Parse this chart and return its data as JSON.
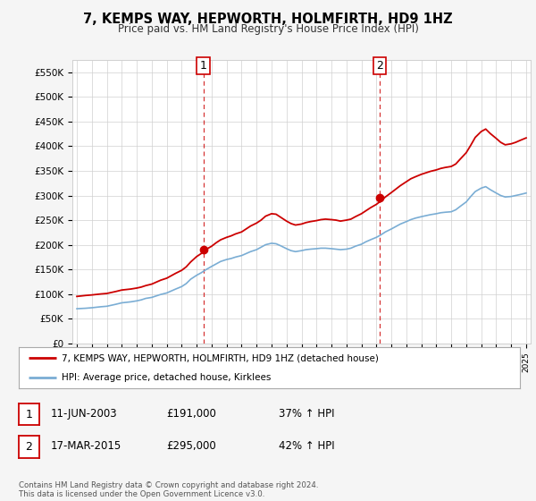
{
  "title": "7, KEMPS WAY, HEPWORTH, HOLMFIRTH, HD9 1HZ",
  "subtitle": "Price paid vs. HM Land Registry's House Price Index (HPI)",
  "ylim": [
    0,
    575000
  ],
  "yticks": [
    0,
    50000,
    100000,
    150000,
    200000,
    250000,
    300000,
    350000,
    400000,
    450000,
    500000,
    550000
  ],
  "ytick_labels": [
    "£0",
    "£50K",
    "£100K",
    "£150K",
    "£200K",
    "£250K",
    "£300K",
    "£350K",
    "£400K",
    "£450K",
    "£500K",
    "£550K"
  ],
  "sale1_date": 2003.44,
  "sale1_price": 191000,
  "sale1_label": "1",
  "sale2_date": 2015.21,
  "sale2_price": 295000,
  "sale2_label": "2",
  "legend_line1": "7, KEMPS WAY, HEPWORTH, HOLMFIRTH, HD9 1HZ (detached house)",
  "legend_line2": "HPI: Average price, detached house, Kirklees",
  "table_row1": [
    "1",
    "11-JUN-2003",
    "£191,000",
    "37% ↑ HPI"
  ],
  "table_row2": [
    "2",
    "17-MAR-2015",
    "£295,000",
    "42% ↑ HPI"
  ],
  "footer": "Contains HM Land Registry data © Crown copyright and database right 2024.\nThis data is licensed under the Open Government Licence v3.0.",
  "hpi_color": "#7aadd4",
  "price_color": "#cc0000",
  "vline_color": "#cc0000",
  "background_color": "#f5f5f5",
  "plot_bg_color": "#ffffff",
  "grid_color": "#d0d0d0",
  "hpi_years": [
    1995.0,
    1995.3,
    1995.6,
    1996.0,
    1996.3,
    1996.6,
    1997.0,
    1997.3,
    1997.6,
    1998.0,
    1998.3,
    1998.6,
    1999.0,
    1999.3,
    1999.6,
    2000.0,
    2000.3,
    2000.6,
    2001.0,
    2001.3,
    2001.6,
    2002.0,
    2002.3,
    2002.6,
    2003.0,
    2003.3,
    2003.6,
    2004.0,
    2004.3,
    2004.6,
    2005.0,
    2005.3,
    2005.6,
    2006.0,
    2006.3,
    2006.6,
    2007.0,
    2007.3,
    2007.6,
    2008.0,
    2008.3,
    2008.6,
    2009.0,
    2009.3,
    2009.6,
    2010.0,
    2010.3,
    2010.6,
    2011.0,
    2011.3,
    2011.6,
    2012.0,
    2012.3,
    2012.6,
    2013.0,
    2013.3,
    2013.6,
    2014.0,
    2014.3,
    2014.6,
    2015.0,
    2015.3,
    2015.6,
    2016.0,
    2016.3,
    2016.6,
    2017.0,
    2017.3,
    2017.6,
    2018.0,
    2018.3,
    2018.6,
    2019.0,
    2019.3,
    2019.6,
    2020.0,
    2020.3,
    2020.6,
    2021.0,
    2021.3,
    2021.6,
    2022.0,
    2022.3,
    2022.6,
    2023.0,
    2023.3,
    2023.6,
    2024.0,
    2024.3,
    2024.6,
    2025.0
  ],
  "hpi_values": [
    70000,
    70500,
    71000,
    72000,
    73000,
    74000,
    75000,
    77000,
    79000,
    82000,
    83000,
    84000,
    86000,
    88000,
    91000,
    93000,
    96000,
    99000,
    102000,
    106000,
    110000,
    115000,
    121000,
    130000,
    138000,
    143000,
    149000,
    156000,
    161000,
    166000,
    170000,
    172000,
    175000,
    178000,
    182000,
    186000,
    190000,
    195000,
    200000,
    203000,
    202000,
    198000,
    192000,
    188000,
    186000,
    188000,
    190000,
    191000,
    192000,
    193000,
    193000,
    192000,
    191000,
    190000,
    191000,
    193000,
    197000,
    201000,
    206000,
    210000,
    215000,
    220000,
    226000,
    232000,
    237000,
    242000,
    247000,
    251000,
    254000,
    257000,
    259000,
    261000,
    263000,
    265000,
    266000,
    267000,
    271000,
    278000,
    287000,
    298000,
    308000,
    315000,
    318000,
    312000,
    305000,
    300000,
    297000,
    298000,
    300000,
    302000,
    305000
  ],
  "price_years": [
    1995.0,
    1995.3,
    1995.6,
    1996.0,
    1996.3,
    1996.6,
    1997.0,
    1997.3,
    1997.6,
    1998.0,
    1998.3,
    1998.6,
    1999.0,
    1999.3,
    1999.6,
    2000.0,
    2000.3,
    2000.6,
    2001.0,
    2001.3,
    2001.6,
    2002.0,
    2002.3,
    2002.6,
    2003.0,
    2003.3,
    2003.6,
    2004.0,
    2004.3,
    2004.6,
    2005.0,
    2005.3,
    2005.6,
    2006.0,
    2006.3,
    2006.6,
    2007.0,
    2007.3,
    2007.6,
    2008.0,
    2008.3,
    2008.6,
    2009.0,
    2009.3,
    2009.6,
    2010.0,
    2010.3,
    2010.6,
    2011.0,
    2011.3,
    2011.6,
    2012.0,
    2012.3,
    2012.6,
    2013.0,
    2013.3,
    2013.6,
    2014.0,
    2014.3,
    2014.6,
    2015.0,
    2015.3,
    2015.6,
    2016.0,
    2016.3,
    2016.6,
    2017.0,
    2017.3,
    2017.6,
    2018.0,
    2018.3,
    2018.6,
    2019.0,
    2019.3,
    2019.6,
    2020.0,
    2020.3,
    2020.6,
    2021.0,
    2021.3,
    2021.6,
    2022.0,
    2022.3,
    2022.6,
    2023.0,
    2023.3,
    2023.6,
    2024.0,
    2024.3,
    2024.6,
    2025.0
  ],
  "price_values": [
    95000,
    96000,
    97000,
    98000,
    99000,
    100000,
    101000,
    103000,
    105000,
    108000,
    109000,
    110000,
    112000,
    114000,
    117000,
    120000,
    124000,
    128000,
    132000,
    137000,
    142000,
    148000,
    155000,
    165000,
    176000,
    182000,
    190000,
    197000,
    204000,
    210000,
    215000,
    218000,
    222000,
    226000,
    232000,
    238000,
    244000,
    250000,
    258000,
    263000,
    262000,
    256000,
    248000,
    243000,
    240000,
    242000,
    245000,
    247000,
    249000,
    251000,
    252000,
    251000,
    250000,
    248000,
    250000,
    252000,
    257000,
    263000,
    269000,
    275000,
    282000,
    289000,
    297000,
    306000,
    313000,
    320000,
    328000,
    334000,
    338000,
    343000,
    346000,
    349000,
    352000,
    355000,
    357000,
    359000,
    364000,
    374000,
    387000,
    402000,
    418000,
    430000,
    435000,
    426000,
    416000,
    408000,
    403000,
    405000,
    408000,
    412000,
    417000
  ]
}
